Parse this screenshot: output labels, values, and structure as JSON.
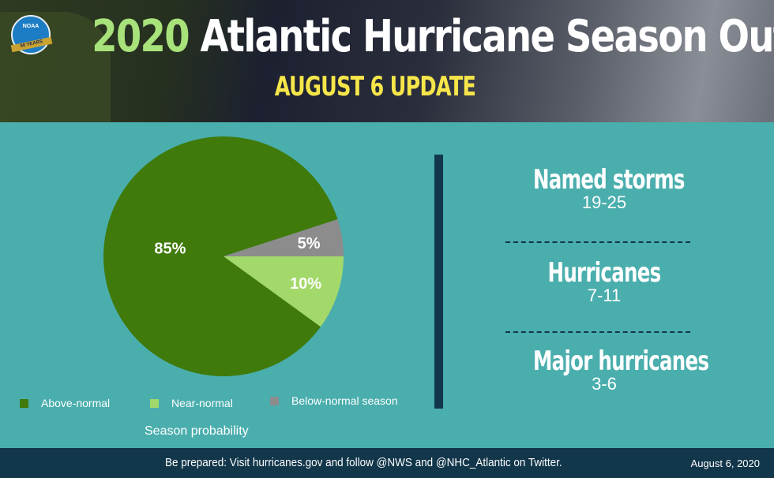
{
  "header": {
    "title_year": "2020",
    "title_rest": "Atlantic Hurricane Season Outlook",
    "subtitle": "AUGUST 6 UPDATE",
    "logo_text": "NOAA",
    "logo_ribbon": "50 YEARS"
  },
  "chart_data": {
    "type": "pie",
    "categories": [
      "Above-normal",
      "Near-normal",
      "Below-normal season"
    ],
    "values": [
      85,
      10,
      5
    ],
    "labels": [
      "85%",
      "10%",
      "5%"
    ],
    "colors": [
      "#3f7a0a",
      "#a3d86a",
      "#8c8c8c"
    ],
    "xlabel": "Season probability",
    "legend": "bottom"
  },
  "stats": [
    {
      "label": "Named storms",
      "value": "19-25"
    },
    {
      "label": "Hurricanes",
      "value": "7-11"
    },
    {
      "label": "Major hurricanes",
      "value": "3-6"
    }
  ],
  "footer": {
    "message": "Be prepared: Visit hurricanes.gov and follow @NWS and @NHC_Atlantic on Twitter.",
    "date": "August 6, 2020"
  }
}
